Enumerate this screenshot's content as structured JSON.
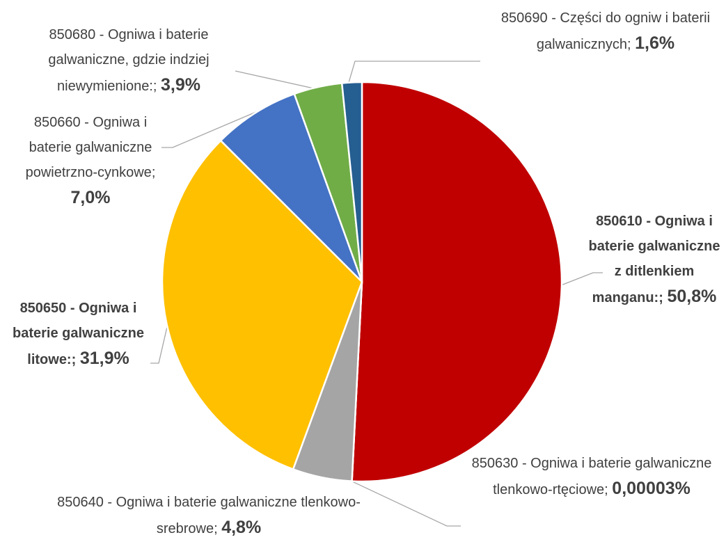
{
  "chart_data": {
    "type": "pie",
    "categories": [
      "850610 - Ogniwa i baterie galwaniczne z ditlenkiem manganu:",
      "850630 - Ogniwa i baterie galwaniczne tlenkowo-rtęciowe",
      "850640 - Ogniwa i baterie galwaniczne tlenkowo-srebrowe",
      "850650 - Ogniwa i baterie galwaniczne litowe:",
      "850660 - Ogniwa i baterie galwaniczne powietrzno-cynkowe",
      "850680 - Ogniwa i baterie galwaniczne, gdzie indziej niewymienione:",
      "850690 - Części do ogniw i baterii galwanicznych"
    ],
    "values": [
      50.8,
      3e-05,
      4.8,
      31.9,
      7.0,
      3.9,
      1.6
    ],
    "value_labels": [
      "50,8%",
      "0,00003%",
      "4,8%",
      "31,9%",
      "7,0%",
      "3,9%",
      "1,6%"
    ],
    "separator": ";",
    "colors": [
      "#c00000",
      "#ed7d31",
      "#a5a5a5",
      "#ffc000",
      "#4472c4",
      "#70ad47",
      "#255e91"
    ]
  }
}
